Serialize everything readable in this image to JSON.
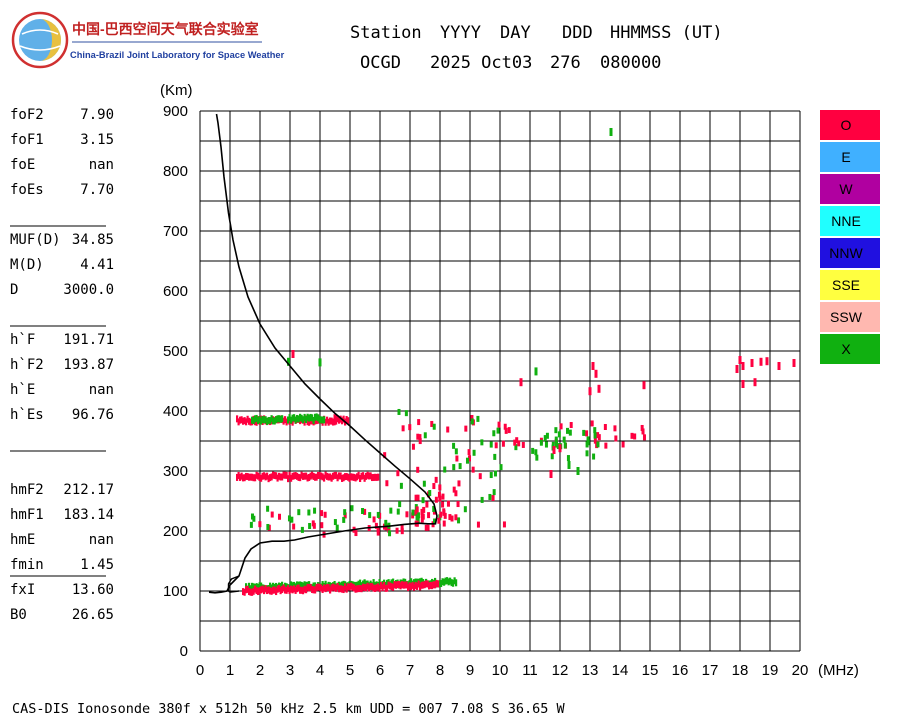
{
  "logo": {
    "cn_title": "中国-巴西空间天气联合实验室",
    "en_title": "China-Brazil Joint Laboratory for Space Weather"
  },
  "header": {
    "labels": [
      "Station",
      "YYYY",
      "DAY",
      "DDD",
      "HHMMSS (UT)"
    ],
    "values": [
      "OCGD",
      "2025 Oct03",
      "276",
      "080000"
    ]
  },
  "params": [
    {
      "name": "foF2",
      "value": "7.90"
    },
    {
      "name": "foF1",
      "value": "3.15"
    },
    {
      "name": "foE",
      "value": "nan"
    },
    {
      "name": "foEs",
      "value": "7.70"
    },
    {
      "name": "MUF(D)",
      "value": "34.85"
    },
    {
      "name": "M(D)",
      "value": "4.41"
    },
    {
      "name": "D",
      "value": "3000.0"
    },
    {
      "name": "h`F",
      "value": "191.71"
    },
    {
      "name": "h`F2",
      "value": "193.87"
    },
    {
      "name": "h`E",
      "value": "nan"
    },
    {
      "name": "h`Es",
      "value": "96.76"
    },
    {
      "name": "hmF2",
      "value": "212.17"
    },
    {
      "name": "hmF1",
      "value": "183.14"
    },
    {
      "name": "hmE",
      "value": "nan"
    },
    {
      "name": "fmin",
      "value": "1.45"
    },
    {
      "name": "fxI",
      "value": "13.60"
    },
    {
      "name": "B0",
      "value": "26.65"
    }
  ],
  "legend": [
    {
      "label": "O",
      "color": "#ff0040"
    },
    {
      "label": "E",
      "color": "#40b0ff"
    },
    {
      "label": "W",
      "color": "#b000a0"
    },
    {
      "label": "NNE",
      "color": "#20ffff"
    },
    {
      "label": "NNW",
      "color": "#2010e0"
    },
    {
      "label": "SSE",
      "color": "#ffff40"
    },
    {
      "label": "SSW",
      "color": "#ffb8b0"
    },
    {
      "label": "X",
      "color": "#10b010"
    }
  ],
  "footer": "CAS-DIS Ionosonde 380f x 512h 50 kHz 2.5 km UDD = 007 7.08 S 36.65 W",
  "chart_data": {
    "type": "scatter",
    "xlabel": "(MHz)",
    "ylabel": "(Km)",
    "xlim": [
      0,
      20
    ],
    "ylim": [
      0,
      900
    ],
    "xticks": [
      0,
      1,
      2,
      3,
      4,
      5,
      6,
      7,
      8,
      9,
      10,
      11,
      12,
      13,
      14,
      15,
      16,
      17,
      18,
      19,
      20
    ],
    "yticks": [
      0,
      100,
      200,
      300,
      400,
      500,
      600,
      700,
      800,
      900
    ],
    "grid": true,
    "legend_position": "right",
    "trace_segments": [
      {
        "polarization": "O",
        "f_start": 1.2,
        "f_end": 4.9,
        "h": 385
      },
      {
        "polarization": "X",
        "f_start": 1.7,
        "f_end": 2.7,
        "h": 386
      },
      {
        "polarization": "X",
        "f_start": 2.9,
        "f_end": 4.1,
        "h": 388
      },
      {
        "polarization": "O",
        "f_start": 1.2,
        "f_end": 5.9,
        "h": 291
      },
      {
        "polarization": "X",
        "f_start": 1.5,
        "f_end": 8.5,
        "h": 106
      },
      {
        "polarization": "O",
        "f_start": 1.4,
        "f_end": 7.9,
        "h": 101
      }
    ],
    "spread_regions": [
      {
        "polarization": "O",
        "f_start": 1.2,
        "f_end": 7.9,
        "h_start": 193,
        "h_end": 232
      },
      {
        "polarization": "X",
        "f_start": 1.6,
        "f_end": 8.6,
        "h_start": 196,
        "h_end": 240
      },
      {
        "polarization": "O",
        "f_start": 7.0,
        "f_end": 8.6,
        "h_start": 205,
        "h_end": 262
      },
      {
        "polarization": "O",
        "f_start": 6.0,
        "f_end": 10.2,
        "h_start": 205,
        "h_end": 390
      },
      {
        "polarization": "X",
        "f_start": 6.4,
        "f_end": 10.6,
        "h_start": 215,
        "h_end": 400
      },
      {
        "polarization": "O",
        "f_start": 10.0,
        "f_end": 14.8,
        "h_start": 340,
        "h_end": 380
      },
      {
        "polarization": "X",
        "f_start": 11.0,
        "f_end": 13.3,
        "h_start": 320,
        "h_end": 370
      }
    ],
    "scatter_points": [
      {
        "polarization": "X",
        "f": 13.7,
        "h": 865
      },
      {
        "polarization": "X",
        "f": 2.95,
        "h": 482
      },
      {
        "polarization": "X",
        "f": 4.0,
        "h": 481
      },
      {
        "polarization": "X",
        "f": 11.2,
        "h": 466
      },
      {
        "polarization": "O",
        "f": 10.7,
        "h": 448
      },
      {
        "polarization": "O",
        "f": 13.1,
        "h": 475
      },
      {
        "polarization": "O",
        "f": 13.2,
        "h": 462
      },
      {
        "polarization": "O",
        "f": 13.3,
        "h": 437
      },
      {
        "polarization": "O",
        "f": 13.0,
        "h": 433
      },
      {
        "polarization": "O",
        "f": 14.8,
        "h": 443
      },
      {
        "polarization": "O",
        "f": 18.0,
        "h": 485
      },
      {
        "polarization": "O",
        "f": 18.1,
        "h": 475
      },
      {
        "polarization": "O",
        "f": 18.4,
        "h": 480
      },
      {
        "polarization": "O",
        "f": 18.7,
        "h": 482
      },
      {
        "polarization": "O",
        "f": 18.9,
        "h": 483
      },
      {
        "polarization": "O",
        "f": 19.8,
        "h": 480
      },
      {
        "polarization": "O",
        "f": 17.9,
        "h": 470
      },
      {
        "polarization": "O",
        "f": 18.5,
        "h": 448
      },
      {
        "polarization": "O",
        "f": 18.1,
        "h": 445
      },
      {
        "polarization": "O",
        "f": 19.3,
        "h": 475
      },
      {
        "polarization": "O",
        "f": 11.8,
        "h": 335
      },
      {
        "polarization": "O",
        "f": 12.0,
        "h": 338
      },
      {
        "polarization": "O",
        "f": 11.7,
        "h": 295
      },
      {
        "polarization": "X",
        "f": 12.6,
        "h": 300
      },
      {
        "polarization": "X",
        "f": 12.3,
        "h": 310
      },
      {
        "polarization": "O",
        "f": 4.5,
        "h": 388
      },
      {
        "polarization": "O",
        "f": 3.1,
        "h": 495
      }
    ],
    "profile": [
      [
        0.55,
        895
      ],
      [
        0.6,
        880
      ],
      [
        0.7,
        840
      ],
      [
        0.8,
        790
      ],
      [
        0.95,
        730
      ],
      [
        1.1,
        685
      ],
      [
        1.3,
        640
      ],
      [
        1.6,
        590
      ],
      [
        2.0,
        545
      ],
      [
        2.5,
        505
      ],
      [
        3.0,
        475
      ],
      [
        3.5,
        445
      ],
      [
        4.0,
        420
      ],
      [
        4.5,
        396
      ],
      [
        5.0,
        375
      ],
      [
        5.5,
        352
      ],
      [
        6.0,
        330
      ],
      [
        6.5,
        308
      ],
      [
        7.0,
        287
      ],
      [
        7.5,
        265
      ],
      [
        7.8,
        245
      ],
      [
        7.9,
        225
      ],
      [
        7.85,
        212
      ],
      [
        7.6,
        212
      ],
      [
        7.3,
        213
      ],
      [
        6.8,
        211
      ],
      [
        6.3,
        208
      ],
      [
        5.5,
        205
      ],
      [
        4.8,
        200
      ],
      [
        4.2,
        195
      ],
      [
        3.6,
        190
      ],
      [
        3.15,
        185
      ],
      [
        2.8,
        183
      ],
      [
        2.4,
        183
      ],
      [
        2.0,
        180
      ],
      [
        1.7,
        170
      ],
      [
        1.5,
        155
      ],
      [
        1.4,
        140
      ],
      [
        1.3,
        125
      ],
      [
        1.1,
        115
      ],
      [
        1.0,
        110
      ],
      [
        0.95,
        105
      ],
      [
        0.9,
        100
      ],
      [
        0.7,
        98
      ],
      [
        0.5,
        97
      ],
      [
        0.3,
        98
      ]
    ],
    "profile_e_branch": [
      [
        1.3,
        125
      ],
      [
        1.05,
        120
      ],
      [
        0.95,
        112
      ],
      [
        0.95,
        100
      ],
      [
        1.0,
        98
      ],
      [
        1.3,
        100
      ]
    ]
  }
}
